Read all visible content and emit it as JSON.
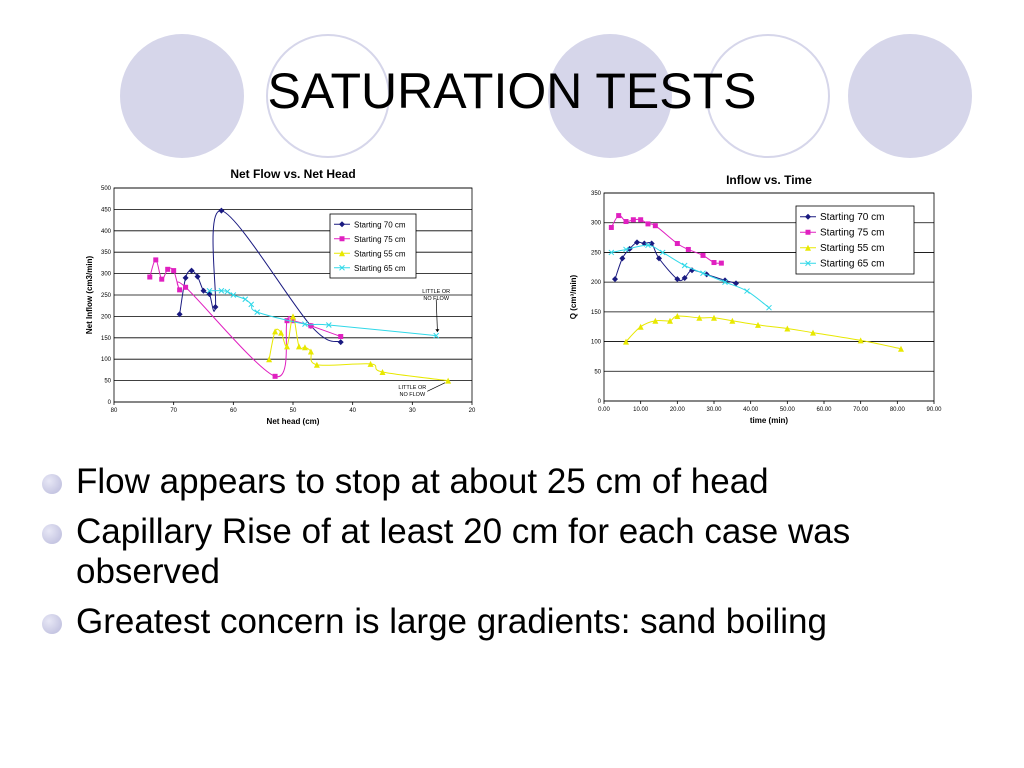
{
  "slide": {
    "title": "SATURATION TESTS",
    "bullets": [
      "Flow appears to stop at about 25 cm of head",
      "Capillary Rise of at least 20 cm for each case was observed",
      "Greatest concern is large gradients:  sand boiling"
    ],
    "accent_color": "#d6d6ea"
  },
  "chart_data": [
    {
      "type": "line",
      "title": "Net Flow vs. Net Head",
      "xlabel": "Net head (cm)",
      "ylabel": "Net Inflow (cm3/min)",
      "xlim": [
        80,
        20
      ],
      "ylim": [
        0,
        500
      ],
      "xticks": [
        "80",
        "70",
        "60",
        "50",
        "40",
        "30",
        "20"
      ],
      "yticks": [
        "0",
        "50",
        "100",
        "150",
        "200",
        "250",
        "300",
        "350",
        "400",
        "450",
        "500"
      ],
      "grid": true,
      "legend": "top-right",
      "annotations": [
        "LITTLE OR NO FLOW",
        "LITTLE OR NO FLOW"
      ],
      "series": [
        {
          "name": "Starting 70 cm",
          "color": "#1a1a80",
          "marker": "diamond",
          "points": [
            [
              69,
              205
            ],
            [
              68,
              290
            ],
            [
              67,
              307
            ],
            [
              66,
              293
            ],
            [
              65,
              260
            ],
            [
              64,
              252
            ],
            [
              63,
              222
            ],
            [
              62,
              447
            ],
            [
              47,
              178
            ],
            [
              42,
              140
            ]
          ]
        },
        {
          "name": "Starting 75 cm",
          "color": "#e020c0",
          "marker": "square",
          "points": [
            [
              74,
              292
            ],
            [
              73,
              332
            ],
            [
              72,
              287
            ],
            [
              71,
              310
            ],
            [
              70,
              307
            ],
            [
              69,
              262
            ],
            [
              68,
              268
            ],
            [
              53,
              60
            ],
            [
              51,
              190
            ],
            [
              50,
              190
            ],
            [
              47,
              178
            ],
            [
              42,
              153
            ]
          ]
        },
        {
          "name": "Starting 55 cm",
          "color": "#e8e800",
          "marker": "triangle",
          "points": [
            [
              54,
              100
            ],
            [
              53,
              165
            ],
            [
              52,
              162
            ],
            [
              51,
              130
            ],
            [
              50,
              200
            ],
            [
              49,
              130
            ],
            [
              48,
              128
            ],
            [
              47,
              118
            ],
            [
              46,
              87
            ],
            [
              37,
              89
            ],
            [
              35,
              70
            ],
            [
              24,
              50
            ]
          ]
        },
        {
          "name": "Starting 65 cm",
          "color": "#30d8e8",
          "marker": "x",
          "points": [
            [
              64,
              260
            ],
            [
              62,
              260
            ],
            [
              61,
              258
            ],
            [
              60,
              250
            ],
            [
              58,
              240
            ],
            [
              57,
              228
            ],
            [
              56,
              210
            ],
            [
              48,
              182
            ],
            [
              44,
              180
            ],
            [
              26,
              155
            ]
          ]
        }
      ]
    },
    {
      "type": "line",
      "title": "Inflow vs. Time",
      "xlabel": "time (min)",
      "ylabel": "Q (cm³/min)",
      "xlim": [
        0,
        90
      ],
      "ylim": [
        0,
        350
      ],
      "xticks": [
        "0.00",
        "10.00",
        "20.00",
        "30.00",
        "40.00",
        "50.00",
        "60.00",
        "70.00",
        "80.00",
        "90.00"
      ],
      "yticks": [
        "0",
        "50",
        "100",
        "150",
        "200",
        "250",
        "300",
        "350"
      ],
      "grid": true,
      "legend": "top-right",
      "series": [
        {
          "name": "Starting 70 cm",
          "color": "#1a1a80",
          "marker": "diamond",
          "points": [
            [
              3,
              205
            ],
            [
              5,
              240
            ],
            [
              7,
              256
            ],
            [
              9,
              267
            ],
            [
              11,
              265
            ],
            [
              13,
              265
            ],
            [
              15,
              240
            ],
            [
              20,
              205
            ],
            [
              22,
              207
            ],
            [
              24,
              220
            ],
            [
              28,
              213
            ],
            [
              33,
              203
            ],
            [
              36,
              198
            ]
          ]
        },
        {
          "name": "Starting 75 cm",
          "color": "#e020c0",
          "marker": "square",
          "points": [
            [
              2,
              292
            ],
            [
              4,
              312
            ],
            [
              6,
              302
            ],
            [
              8,
              305
            ],
            [
              10,
              305
            ],
            [
              12,
              298
            ],
            [
              14,
              295
            ],
            [
              20,
              265
            ],
            [
              23,
              255
            ],
            [
              27,
              245
            ],
            [
              30,
              233
            ],
            [
              32,
              232
            ]
          ]
        },
        {
          "name": "Starting 55 cm",
          "color": "#e8e800",
          "marker": "triangle",
          "points": [
            [
              6,
              100
            ],
            [
              10,
              125
            ],
            [
              14,
              135
            ],
            [
              18,
              135
            ],
            [
              20,
              143
            ],
            [
              26,
              140
            ],
            [
              30,
              140
            ],
            [
              35,
              135
            ],
            [
              42,
              128
            ],
            [
              50,
              122
            ],
            [
              57,
              115
            ],
            [
              70,
              102
            ],
            [
              81,
              88
            ]
          ]
        },
        {
          "name": "Starting 65 cm",
          "color": "#30d8e8",
          "marker": "x",
          "points": [
            [
              2,
              250
            ],
            [
              6,
              255
            ],
            [
              12,
              262
            ],
            [
              16,
              250
            ],
            [
              22,
              228
            ],
            [
              27,
              215
            ],
            [
              33,
              200
            ],
            [
              39,
              185
            ],
            [
              45,
              157
            ]
          ]
        }
      ]
    }
  ]
}
